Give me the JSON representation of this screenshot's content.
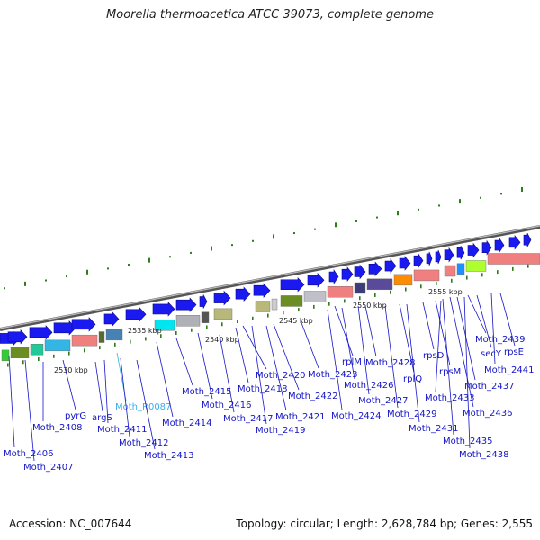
{
  "title": "Moorella thermoacetica ATCC 39073, complete genome",
  "footer": {
    "accession": "Accession: NC_007644",
    "summary": "Topology: circular; Length: 2,628,784 bp; Genes: 2,555"
  },
  "colors": {
    "gene_blue": "#1a1af0",
    "label_blue": "#1414c8",
    "label_cyan": "#3aaee8",
    "tick_green": "#2e7d1a",
    "backbone": "#888888"
  },
  "kbp_ticks": [
    "2530 kbp",
    "2535 kbp",
    "2540 kbp",
    "2545 kbp",
    "2550 kbp",
    "2555 kbp"
  ],
  "gene_labels": [
    "Moth_2406",
    "Moth_2407",
    "Moth_2408",
    "pyrG",
    "argS",
    "Moth_2411",
    "Moth_R0087",
    "Moth_2412",
    "Moth_2413",
    "Moth_2414",
    "Moth_2415",
    "Moth_2416",
    "Moth_2417",
    "Moth_2418",
    "Moth_2419",
    "Moth_2420",
    "Moth_2421",
    "Moth_2422",
    "Moth_2423",
    "Moth_2424",
    "rplM",
    "Moth_2426",
    "Moth_2427",
    "Moth_2428",
    "Moth_2429",
    "rplQ",
    "Moth_2431",
    "rpsD",
    "rpsM",
    "Moth_2433",
    "Moth_2435",
    "Moth_2436",
    "Moth_2437",
    "Moth_2438",
    "Moth_2439",
    "secY",
    "rpsE",
    "Moth_2441"
  ]
}
